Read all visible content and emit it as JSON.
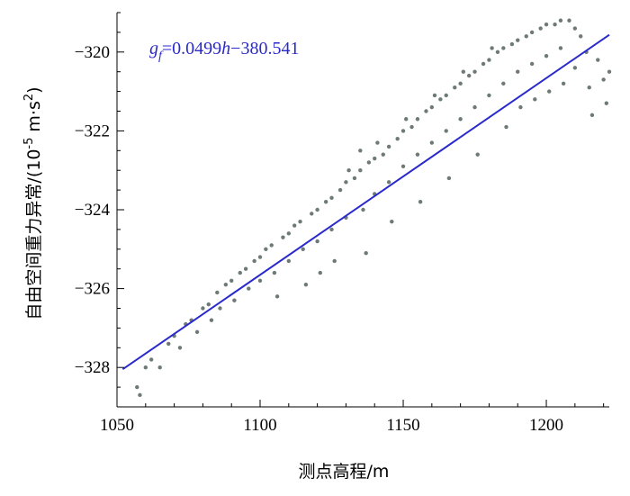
{
  "chart_data": {
    "type": "scatter",
    "title": "",
    "xlabel": "测点高程/m",
    "ylabel": "自由空间重力异常/(10",
    "ylabel_sup": "-5",
    "ylabel_tail": " m·s",
    "ylabel_sup2": "2",
    "ylabel_end": ")",
    "xlim": [
      1050,
      1222
    ],
    "ylim": [
      -329,
      -319
    ],
    "xticks": [
      1050,
      1100,
      1150,
      1200
    ],
    "yticks": [
      -328,
      -326,
      -324,
      -322,
      -320
    ],
    "grid": false,
    "equation": {
      "lhs_base": "g",
      "lhs_sub": "f",
      "rhs_mid": "=0.0499",
      "rhs_var": "h",
      "rhs_tail": "−380.541"
    },
    "fit_line": {
      "slope": 0.0499,
      "intercept": -380.541,
      "x_range": [
        1052,
        1222
      ],
      "color": "#2a2acc"
    },
    "point_color": "#6e7a76",
    "series": [
      {
        "values": [
          [
            1057,
            -328.5
          ],
          [
            1058,
            -328.7
          ],
          [
            1060,
            -328.0
          ],
          [
            1062,
            -327.8
          ],
          [
            1065,
            -328.0
          ],
          [
            1068,
            -327.4
          ],
          [
            1070,
            -327.2
          ],
          [
            1072,
            -327.5
          ],
          [
            1074,
            -326.9
          ],
          [
            1076,
            -326.8
          ],
          [
            1078,
            -327.1
          ],
          [
            1080,
            -326.5
          ],
          [
            1082,
            -326.4
          ],
          [
            1083,
            -326.8
          ],
          [
            1085,
            -326.1
          ],
          [
            1086,
            -326.5
          ],
          [
            1088,
            -325.9
          ],
          [
            1090,
            -325.8
          ],
          [
            1091,
            -326.3
          ],
          [
            1093,
            -325.6
          ],
          [
            1095,
            -325.5
          ],
          [
            1096,
            -326.0
          ],
          [
            1098,
            -325.3
          ],
          [
            1100,
            -325.2
          ],
          [
            1100,
            -325.8
          ],
          [
            1102,
            -325.0
          ],
          [
            1104,
            -324.9
          ],
          [
            1105,
            -325.6
          ],
          [
            1106,
            -326.2
          ],
          [
            1108,
            -324.7
          ],
          [
            1110,
            -324.6
          ],
          [
            1110,
            -325.3
          ],
          [
            1112,
            -324.4
          ],
          [
            1114,
            -324.3
          ],
          [
            1115,
            -325.0
          ],
          [
            1116,
            -325.9
          ],
          [
            1118,
            -324.1
          ],
          [
            1120,
            -324.0
          ],
          [
            1120,
            -324.8
          ],
          [
            1121,
            -325.6
          ],
          [
            1123,
            -323.8
          ],
          [
            1125,
            -323.7
          ],
          [
            1125,
            -324.5
          ],
          [
            1126,
            -325.3
          ],
          [
            1128,
            -323.5
          ],
          [
            1130,
            -323.3
          ],
          [
            1130,
            -324.2
          ],
          [
            1131,
            -323.0
          ],
          [
            1133,
            -323.2
          ],
          [
            1135,
            -323.0
          ],
          [
            1135,
            -322.5
          ],
          [
            1136,
            -324.0
          ],
          [
            1137,
            -325.1
          ],
          [
            1138,
            -322.8
          ],
          [
            1140,
            -322.7
          ],
          [
            1140,
            -323.6
          ],
          [
            1141,
            -322.3
          ],
          [
            1143,
            -322.6
          ],
          [
            1145,
            -322.4
          ],
          [
            1145,
            -323.3
          ],
          [
            1146,
            -324.3
          ],
          [
            1148,
            -322.2
          ],
          [
            1150,
            -322.0
          ],
          [
            1150,
            -322.9
          ],
          [
            1151,
            -321.7
          ],
          [
            1153,
            -321.9
          ],
          [
            1155,
            -321.7
          ],
          [
            1155,
            -322.6
          ],
          [
            1156,
            -323.8
          ],
          [
            1158,
            -321.5
          ],
          [
            1160,
            -321.4
          ],
          [
            1160,
            -322.3
          ],
          [
            1161,
            -321.1
          ],
          [
            1163,
            -321.2
          ],
          [
            1165,
            -321.1
          ],
          [
            1165,
            -322.0
          ],
          [
            1166,
            -323.2
          ],
          [
            1168,
            -320.9
          ],
          [
            1170,
            -320.8
          ],
          [
            1170,
            -321.7
          ],
          [
            1171,
            -320.5
          ],
          [
            1173,
            -320.6
          ],
          [
            1175,
            -320.5
          ],
          [
            1175,
            -321.4
          ],
          [
            1176,
            -322.6
          ],
          [
            1178,
            -320.3
          ],
          [
            1180,
            -320.2
          ],
          [
            1180,
            -321.1
          ],
          [
            1181,
            -319.9
          ],
          [
            1183,
            -320.0
          ],
          [
            1185,
            -319.9
          ],
          [
            1185,
            -320.8
          ],
          [
            1186,
            -321.9
          ],
          [
            1188,
            -319.8
          ],
          [
            1190,
            -319.7
          ],
          [
            1190,
            -320.5
          ],
          [
            1191,
            -321.4
          ],
          [
            1193,
            -319.6
          ],
          [
            1195,
            -319.5
          ],
          [
            1195,
            -320.3
          ],
          [
            1196,
            -321.2
          ],
          [
            1198,
            -319.4
          ],
          [
            1200,
            -319.3
          ],
          [
            1200,
            -320.1
          ],
          [
            1201,
            -321.0
          ],
          [
            1203,
            -319.3
          ],
          [
            1205,
            -319.2
          ],
          [
            1205,
            -319.9
          ],
          [
            1206,
            -320.8
          ],
          [
            1208,
            -319.2
          ],
          [
            1210,
            -319.4
          ],
          [
            1210,
            -320.4
          ],
          [
            1212,
            -319.6
          ],
          [
            1214,
            -320.0
          ],
          [
            1215,
            -320.9
          ],
          [
            1216,
            -321.6
          ],
          [
            1218,
            -320.2
          ],
          [
            1220,
            -320.7
          ],
          [
            1221,
            -321.3
          ],
          [
            1222,
            -320.5
          ]
        ]
      }
    ]
  }
}
